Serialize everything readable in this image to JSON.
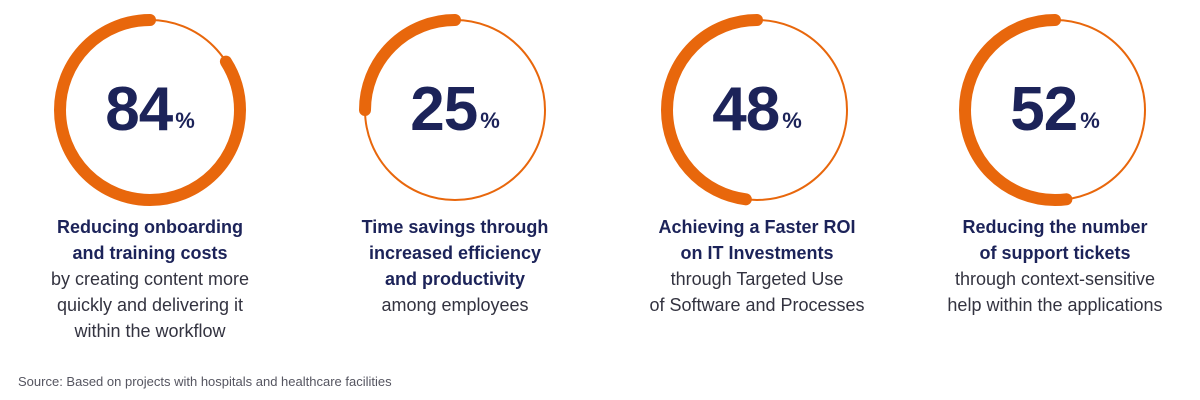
{
  "chart_data": {
    "type": "donut-stats",
    "unit": "%",
    "accent_color": "#e8670c",
    "track_color": "#e8670c",
    "text_color": "#1c2359",
    "items": [
      {
        "value": 84,
        "bold_lines": [
          "Reducing onboarding",
          "and training costs"
        ],
        "normal_lines": [
          "by creating content more",
          "quickly and delivering it",
          "within the workflow"
        ]
      },
      {
        "value": 25,
        "bold_lines": [
          "Time savings through",
          "increased efficiency",
          "and productivity"
        ],
        "normal_lines": [
          "among employees"
        ]
      },
      {
        "value": 48,
        "bold_lines": [
          "Achieving a Faster ROI",
          "on IT Investments"
        ],
        "normal_lines": [
          "through Targeted Use",
          "of Software and Processes"
        ]
      },
      {
        "value": 52,
        "bold_lines": [
          "Reducing the number",
          "of support tickets"
        ],
        "normal_lines": [
          "through context-sensitive",
          "help within the applications"
        ]
      }
    ]
  },
  "source": "Source: Based on projects with hospitals and healthcare facilities"
}
